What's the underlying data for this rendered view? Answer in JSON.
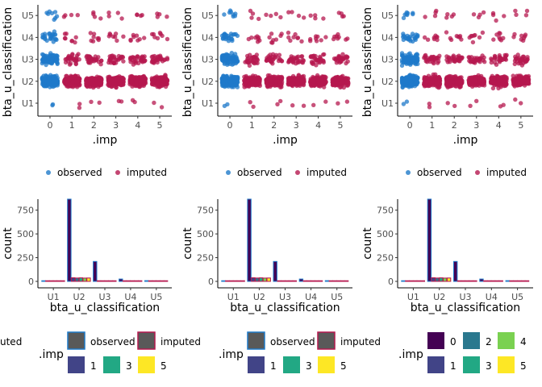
{
  "colors": {
    "observed": "#1f7ac9",
    "imputed": "#b5184f",
    "imp_levels": [
      "#440154",
      "#414487",
      "#2a788e",
      "#22a884",
      "#7ad151",
      "#fde725"
    ],
    "bar_fill": "#595959"
  },
  "chart_data": [
    {
      "type": "scatter",
      "xlabel": ".imp",
      "ylabel": "bta_u_classification",
      "x_ticks": [
        "0",
        "1",
        "2",
        "3",
        "4",
        "5"
      ],
      "y_ticks": [
        "U1",
        "U2",
        "U3",
        "U4",
        "U5"
      ],
      "legend": {
        "position": "bottom",
        "items": [
          "observed",
          "imputed"
        ]
      },
      "series": [
        {
          "name": "observed",
          "x": [
            0
          ],
          "levels": {
            "U1": 2,
            "U2": 205,
            "U3": 86,
            "U4": 25,
            "U5": 8
          }
        },
        {
          "name": "imputed",
          "x": [
            1,
            2,
            3,
            4,
            5
          ],
          "levels": {
            "U1": 2,
            "U2": 170,
            "U3": 30,
            "U4": 8,
            "U5": 4
          }
        }
      ]
    },
    {
      "type": "scatter",
      "xlabel": ".imp",
      "ylabel": "bta_u_classification",
      "x_ticks": [
        "0",
        "1",
        "2",
        "3",
        "4",
        "5"
      ],
      "y_ticks": [
        "U1",
        "U2",
        "U3",
        "U4",
        "U5"
      ],
      "legend": {
        "position": "bottom",
        "items": [
          "observed",
          "imputed"
        ]
      },
      "series": [
        {
          "name": "observed",
          "x": [
            0
          ],
          "levels": {
            "U1": 2,
            "U2": 205,
            "U3": 86,
            "U4": 25,
            "U5": 8
          }
        },
        {
          "name": "imputed",
          "x": [
            1,
            2,
            3,
            4,
            5
          ],
          "levels": {
            "U1": 2,
            "U2": 170,
            "U3": 30,
            "U4": 8,
            "U5": 4
          }
        }
      ]
    },
    {
      "type": "scatter",
      "xlabel": ".imp",
      "ylabel": "bta_u_classification",
      "x_ticks": [
        "0",
        "1",
        "2",
        "3",
        "4",
        "5"
      ],
      "y_ticks": [
        "U1",
        "U2",
        "U3",
        "U4",
        "U5"
      ],
      "legend": {
        "position": "bottom",
        "items": [
          "observed",
          "imputed"
        ]
      },
      "series": [
        {
          "name": "observed",
          "x": [
            0
          ],
          "levels": {
            "U1": 2,
            "U2": 205,
            "U3": 86,
            "U4": 25,
            "U5": 8
          }
        },
        {
          "name": "imputed",
          "x": [
            1,
            2,
            3,
            4,
            5
          ],
          "levels": {
            "U1": 2,
            "U2": 170,
            "U3": 30,
            "U4": 8,
            "U5": 4
          }
        }
      ]
    },
    {
      "type": "bar",
      "xlabel": "bta_u_classification",
      "ylabel": "count",
      "categories": [
        "U1",
        "U2",
        "U3",
        "U4",
        "U5"
      ],
      "y_ticks": [
        0,
        250,
        500,
        750
      ],
      "ylim": [
        0,
        900
      ],
      "groups": [
        "0",
        "1",
        "2",
        "3",
        "4",
        "5"
      ],
      "values": [
        [
          2,
          866,
          210,
          25,
          8
        ],
        [
          2,
          38,
          6,
          2,
          1
        ],
        [
          2,
          36,
          6,
          2,
          1
        ],
        [
          2,
          37,
          6,
          2,
          1
        ],
        [
          2,
          35,
          6,
          2,
          1
        ],
        [
          2,
          36,
          6,
          2,
          1
        ]
      ],
      "legend": {
        "title": ".imp",
        "items": [
          "observed",
          "imputed",
          "1",
          "3",
          "5"
        ]
      }
    },
    {
      "type": "bar",
      "xlabel": "bta_u_classification",
      "ylabel": "count",
      "categories": [
        "U1",
        "U2",
        "U3",
        "U4",
        "U5"
      ],
      "y_ticks": [
        0,
        250,
        500,
        750
      ],
      "ylim": [
        0,
        900
      ],
      "groups": [
        "0",
        "1",
        "2",
        "3",
        "4",
        "5"
      ],
      "values": [
        [
          2,
          866,
          210,
          25,
          8
        ],
        [
          2,
          38,
          6,
          2,
          1
        ],
        [
          2,
          36,
          6,
          2,
          1
        ],
        [
          2,
          37,
          6,
          2,
          1
        ],
        [
          2,
          35,
          6,
          2,
          1
        ],
        [
          2,
          36,
          6,
          2,
          1
        ]
      ],
      "legend": {
        "title": ".imp",
        "items": [
          "observed",
          "imputed",
          "1",
          "3",
          "5"
        ]
      }
    },
    {
      "type": "bar",
      "xlabel": "bta_u_classification",
      "ylabel": "count",
      "categories": [
        "U1",
        "U2",
        "U3",
        "U4",
        "U5"
      ],
      "y_ticks": [
        0,
        250,
        500,
        750
      ],
      "ylim": [
        0,
        900
      ],
      "groups": [
        "0",
        "1",
        "2",
        "3",
        "4",
        "5"
      ],
      "values": [
        [
          2,
          866,
          210,
          25,
          8
        ],
        [
          2,
          38,
          6,
          2,
          1
        ],
        [
          2,
          36,
          6,
          2,
          1
        ],
        [
          2,
          37,
          6,
          2,
          1
        ],
        [
          2,
          35,
          6,
          2,
          1
        ],
        [
          2,
          36,
          6,
          2,
          1
        ]
      ],
      "legend": {
        "title": ".imp",
        "items": [
          "0",
          "2",
          "4",
          "1",
          "3",
          "5"
        ]
      }
    }
  ],
  "clipped_text": "uted"
}
